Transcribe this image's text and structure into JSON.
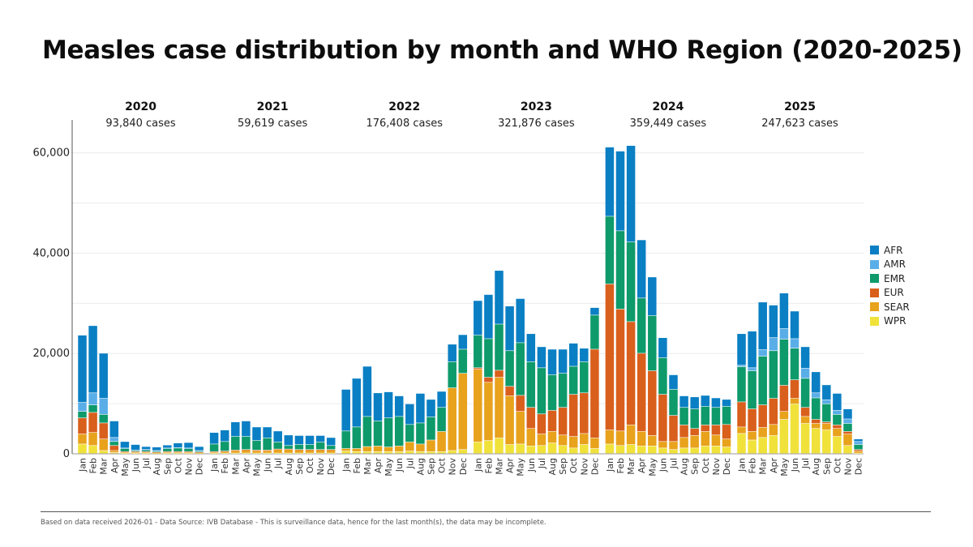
{
  "chart_data": {
    "type": "bar",
    "stacked": true,
    "title": "Measles case distribution by month and WHO Region (2020-2025)",
    "xlabel": "",
    "ylabel": "",
    "ylim": [
      0,
      65000
    ],
    "yticks": [
      0,
      20000,
      40000,
      60000
    ],
    "ytick_labels": [
      "0",
      "20,000",
      "40,000",
      "60,000"
    ],
    "grid": true,
    "legend_position": "right",
    "months": [
      "Jan",
      "Feb",
      "Mar",
      "Apr",
      "May",
      "Jun",
      "Jul",
      "Aug",
      "Sep",
      "Oct",
      "Nov",
      "Dec"
    ],
    "regions": [
      {
        "name": "AFR",
        "color": "#0a7fc4"
      },
      {
        "name": "AMR",
        "color": "#5aaee8"
      },
      {
        "name": "EMR",
        "color": "#0e9a6a"
      },
      {
        "name": "EUR",
        "color": "#d95f1c"
      },
      {
        "name": "SEAR",
        "color": "#e8a21c"
      },
      {
        "name": "WPR",
        "color": "#f0e23a"
      }
    ],
    "years": [
      {
        "year": "2020",
        "cases_label": "93,840 cases",
        "series": {
          "WPR": [
            1900,
            1600,
            600,
            200,
            100,
            100,
            100,
            100,
            100,
            100,
            100,
            100
          ],
          "SEAR": [
            2000,
            2600,
            2300,
            400,
            200,
            200,
            200,
            100,
            200,
            200,
            200,
            100
          ],
          "EUR": [
            3200,
            4000,
            3200,
            1000,
            100,
            100,
            100,
            100,
            100,
            100,
            100,
            100
          ],
          "EMR": [
            1300,
            1500,
            1700,
            800,
            600,
            200,
            300,
            200,
            600,
            700,
            600,
            200
          ],
          "AMR": [
            1800,
            2400,
            3200,
            800,
            100,
            100,
            100,
            100,
            100,
            100,
            100,
            100
          ],
          "AFR": [
            13400,
            13400,
            9000,
            3300,
            1300,
            1100,
            600,
            700,
            600,
            900,
            1100,
            800
          ]
        }
      },
      {
        "year": "2021",
        "cases_label": "59,619 cases",
        "series": {
          "WPR": [
            100,
            100,
            100,
            100,
            100,
            100,
            100,
            100,
            100,
            100,
            100,
            100
          ],
          "SEAR": [
            200,
            300,
            500,
            600,
            500,
            500,
            700,
            700,
            600,
            600,
            600,
            600
          ],
          "EUR": [
            100,
            100,
            100,
            100,
            100,
            100,
            100,
            100,
            100,
            100,
            100,
            100
          ],
          "EMR": [
            1500,
            1900,
            2700,
            2600,
            1900,
            2400,
            1400,
            700,
            1000,
            1000,
            1500,
            800
          ],
          "AMR": [
            0,
            0,
            0,
            0,
            0,
            0,
            0,
            0,
            0,
            0,
            0,
            0
          ],
          "AFR": [
            2300,
            2300,
            2900,
            3100,
            2700,
            2200,
            2200,
            2100,
            1800,
            1800,
            1300,
            1600
          ]
        }
      },
      {
        "year": "2022",
        "cases_label": "176,408 cases",
        "series": {
          "WPR": [
            500,
            400,
            400,
            400,
            400,
            400,
            500,
            400,
            400,
            400,
            600,
            800
          ],
          "SEAR": [
            500,
            600,
            1000,
            1100,
            900,
            1100,
            1800,
            1500,
            2300,
            4000,
            12500,
            15200
          ],
          "EUR": [
            0,
            0,
            0,
            0,
            0,
            0,
            0,
            0,
            0,
            0,
            0,
            0
          ],
          "EMR": [
            3500,
            4300,
            6000,
            5000,
            5800,
            5900,
            3500,
            4200,
            4600,
            4800,
            5200,
            4800
          ],
          "AMR": [
            0,
            0,
            0,
            0,
            0,
            0,
            0,
            0,
            0,
            0,
            0,
            0
          ],
          "AFR": [
            8300,
            9700,
            10000,
            5600,
            5200,
            4100,
            4100,
            5900,
            3500,
            3200,
            3500,
            2900
          ]
        }
      },
      {
        "year": "2023",
        "cases_label": "321,876 cases",
        "series": {
          "WPR": [
            2300,
            2600,
            3100,
            1800,
            1900,
            1500,
            1600,
            2100,
            1600,
            1100,
            1800,
            1000
          ],
          "SEAR": [
            14500,
            11600,
            12100,
            9700,
            6500,
            3500,
            2300,
            2300,
            2100,
            2300,
            2200,
            2100
          ],
          "EUR": [
            300,
            1000,
            1400,
            1900,
            3200,
            4200,
            4000,
            4200,
            5500,
            8400,
            8100,
            17700
          ],
          "EMR": [
            6500,
            7700,
            9200,
            7100,
            10500,
            9100,
            9200,
            7100,
            6800,
            5600,
            6200,
            6800
          ],
          "AMR": [
            0,
            0,
            0,
            0,
            0,
            0,
            0,
            0,
            0,
            0,
            0,
            0
          ],
          "AFR": [
            6900,
            8800,
            10700,
            8900,
            8800,
            5600,
            4200,
            5100,
            4800,
            4600,
            2700,
            1500
          ]
        }
      },
      {
        "year": "2024",
        "cases_label": "359,449 cases",
        "series": {
          "WPR": [
            1900,
            1600,
            1800,
            1500,
            1500,
            1100,
            800,
            1100,
            1100,
            1500,
            1500,
            1300
          ],
          "SEAR": [
            2800,
            2900,
            3900,
            2900,
            2100,
            1300,
            1600,
            2100,
            2500,
            2900,
            2200,
            1600
          ],
          "EUR": [
            29100,
            24300,
            20600,
            15600,
            12900,
            9400,
            5200,
            2500,
            1400,
            1300,
            2000,
            2900
          ],
          "EMR": [
            13500,
            15600,
            15900,
            11000,
            11000,
            7300,
            5200,
            3500,
            3900,
            3700,
            3500,
            3600
          ],
          "AMR": [
            0,
            0,
            0,
            0,
            0,
            0,
            0,
            0,
            0,
            0,
            0,
            0
          ],
          "AFR": [
            13800,
            15900,
            19200,
            11600,
            7700,
            4000,
            2900,
            2300,
            2400,
            2200,
            1900,
            1400
          ]
        }
      },
      {
        "year": "2025",
        "cases_label": "247,623 cases",
        "series": {
          "WPR": [
            4000,
            2700,
            3200,
            3600,
            6800,
            9900,
            6000,
            5000,
            4700,
            3400,
            1600,
            100
          ],
          "SEAR": [
            1300,
            1700,
            2000,
            2200,
            1600,
            1100,
            1400,
            1000,
            1300,
            1600,
            2300,
            400
          ],
          "EUR": [
            5000,
            4500,
            4500,
            5200,
            5200,
            3700,
            1800,
            800,
            300,
            700,
            500,
            300
          ],
          "EMR": [
            7000,
            7600,
            9700,
            9500,
            9200,
            6300,
            5800,
            4300,
            3600,
            2100,
            1600,
            1000
          ],
          "AMR": [
            300,
            600,
            1300,
            2600,
            2100,
            1900,
            2000,
            1000,
            800,
            800,
            900,
            600
          ],
          "AFR": [
            6300,
            7300,
            9500,
            6500,
            7100,
            5500,
            4300,
            4200,
            3000,
            3400,
            2000,
            500
          ]
        }
      }
    ]
  },
  "footer": {
    "note": "Based on data received 2026-01 - Data Source: IVB Database - This is surveillance data, hence for the last month(s), the data may be incomplete."
  }
}
